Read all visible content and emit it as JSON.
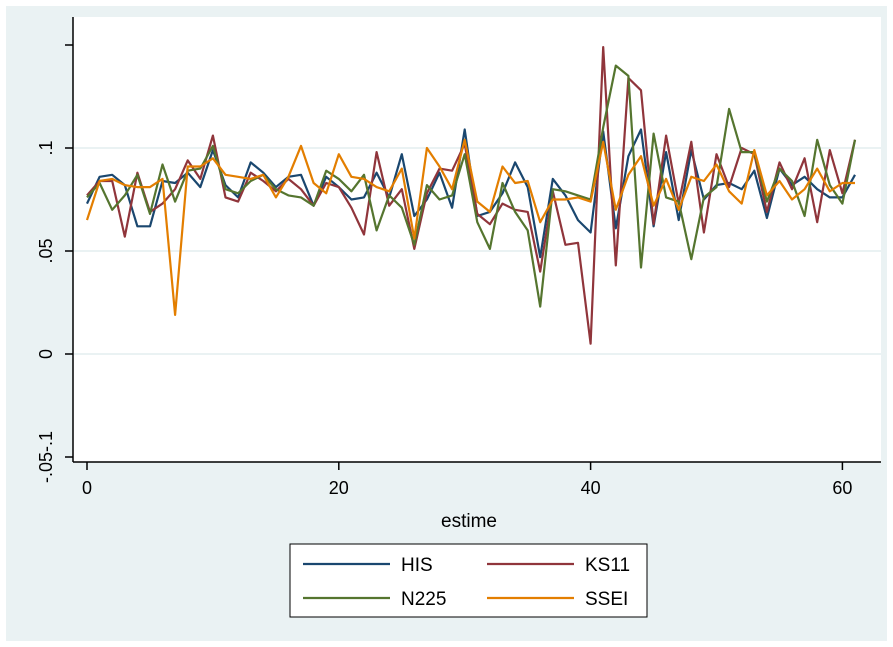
{
  "chart_data": {
    "type": "line",
    "title": "",
    "xlabel": "estime",
    "ylabel": "",
    "xlim": [
      0,
      61
    ],
    "ylim": [
      -0.05,
      0.15
    ],
    "x_ticks": [
      0,
      20,
      40,
      60
    ],
    "x_tick_labels": [
      "0",
      "20",
      "40",
      "60"
    ],
    "y_ticks": [
      -0.05,
      0,
      0.05,
      0.1
    ],
    "y_tick_labels": [
      "-.05-.1",
      "0",
      ".05",
      ".1"
    ],
    "grid": true,
    "legend_position": "bottom",
    "colors": {
      "plot_background": "#ffffff",
      "outer_background": "#eaf2f3",
      "grid": "#eaf2f3"
    },
    "x": [
      0,
      1,
      2,
      3,
      4,
      5,
      6,
      7,
      8,
      9,
      10,
      11,
      12,
      13,
      14,
      15,
      16,
      17,
      18,
      19,
      20,
      21,
      22,
      23,
      24,
      25,
      26,
      27,
      28,
      29,
      30,
      31,
      32,
      33,
      34,
      35,
      36,
      37,
      38,
      39,
      40,
      41,
      42,
      43,
      44,
      45,
      46,
      47,
      48,
      49,
      50,
      51,
      52,
      53,
      54,
      55,
      56,
      57,
      58,
      59,
      60,
      61
    ],
    "series": [
      {
        "name": "HIS",
        "color": "#1a476f",
        "values": [
          0.073,
          0.086,
          0.087,
          0.082,
          0.062,
          0.062,
          0.084,
          0.083,
          0.088,
          0.081,
          0.099,
          0.082,
          0.076,
          0.093,
          0.088,
          0.081,
          0.086,
          0.087,
          0.072,
          0.086,
          0.081,
          0.075,
          0.076,
          0.088,
          0.076,
          0.097,
          0.067,
          0.075,
          0.088,
          0.071,
          0.109,
          0.067,
          0.069,
          0.078,
          0.093,
          0.081,
          0.047,
          0.085,
          0.077,
          0.065,
          0.059,
          0.108,
          0.061,
          0.096,
          0.109,
          0.062,
          0.098,
          0.065,
          0.099,
          0.075,
          0.082,
          0.083,
          0.08,
          0.089,
          0.066,
          0.09,
          0.082,
          0.086,
          0.08,
          0.076,
          0.076,
          0.087
        ]
      },
      {
        "name": "KS11",
        "color": "#90353b",
        "values": [
          0.077,
          0.084,
          0.084,
          0.057,
          0.088,
          0.069,
          0.073,
          0.08,
          0.094,
          0.085,
          0.106,
          0.076,
          0.074,
          0.088,
          0.084,
          0.079,
          0.085,
          0.08,
          0.072,
          0.083,
          0.081,
          0.071,
          0.058,
          0.098,
          0.072,
          0.08,
          0.051,
          0.078,
          0.09,
          0.089,
          0.102,
          0.068,
          0.063,
          0.073,
          0.07,
          0.069,
          0.04,
          0.079,
          0.053,
          0.054,
          0.005,
          0.149,
          0.043,
          0.134,
          0.128,
          0.063,
          0.106,
          0.073,
          0.103,
          0.059,
          0.097,
          0.081,
          0.1,
          0.097,
          0.069,
          0.093,
          0.08,
          0.095,
          0.064,
          0.099,
          0.078,
          0.104
        ]
      },
      {
        "name": "N225",
        "color": "#55752f",
        "values": [
          0.076,
          0.083,
          0.07,
          0.077,
          0.087,
          0.068,
          0.092,
          0.074,
          0.089,
          0.09,
          0.101,
          0.08,
          0.078,
          0.084,
          0.087,
          0.08,
          0.077,
          0.076,
          0.072,
          0.089,
          0.085,
          0.079,
          0.087,
          0.06,
          0.077,
          0.071,
          0.053,
          0.082,
          0.075,
          0.077,
          0.097,
          0.064,
          0.051,
          0.083,
          0.069,
          0.06,
          0.023,
          0.08,
          0.079,
          0.077,
          0.075,
          0.11,
          0.14,
          0.135,
          0.042,
          0.107,
          0.076,
          0.074,
          0.046,
          0.076,
          0.081,
          0.119,
          0.098,
          0.098,
          0.074,
          0.09,
          0.084,
          0.067,
          0.104,
          0.082,
          0.073,
          0.104
        ]
      },
      {
        "name": "SSEI",
        "color": "#e37e00",
        "values": [
          0.065,
          0.084,
          0.085,
          0.082,
          0.081,
          0.081,
          0.085,
          0.019,
          0.091,
          0.091,
          0.095,
          0.087,
          0.086,
          0.085,
          0.087,
          0.076,
          0.086,
          0.101,
          0.083,
          0.078,
          0.097,
          0.086,
          0.085,
          0.081,
          0.079,
          0.09,
          0.056,
          0.1,
          0.091,
          0.08,
          0.104,
          0.074,
          0.069,
          0.091,
          0.083,
          0.084,
          0.064,
          0.075,
          0.075,
          0.076,
          0.074,
          0.103,
          0.07,
          0.087,
          0.096,
          0.072,
          0.085,
          0.07,
          0.086,
          0.084,
          0.092,
          0.079,
          0.073,
          0.099,
          0.077,
          0.084,
          0.075,
          0.08,
          0.09,
          0.079,
          0.083,
          0.083
        ]
      }
    ]
  }
}
